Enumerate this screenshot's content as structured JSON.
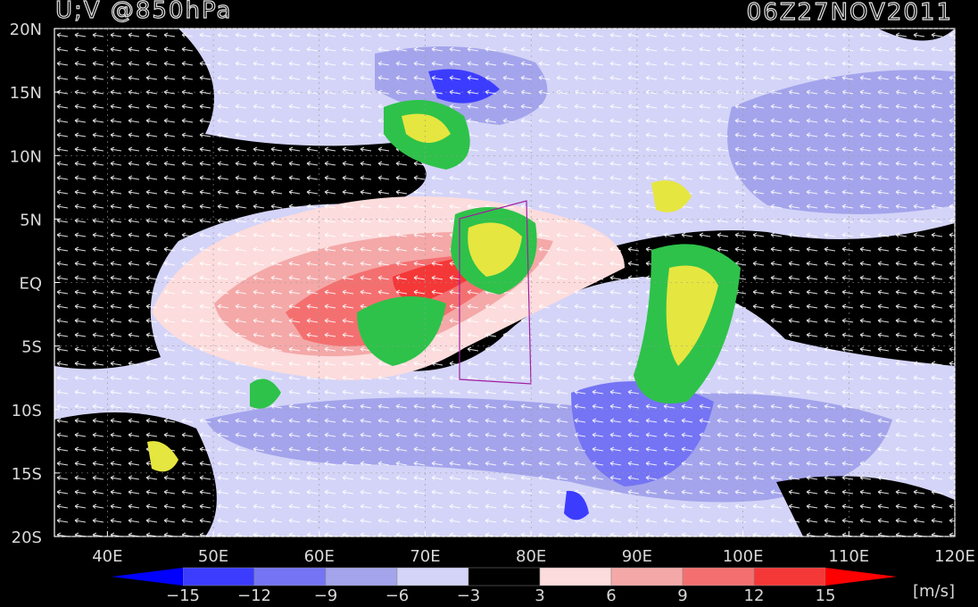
{
  "title": "U;V @850hPa",
  "time": "06Z27NOV2011",
  "map": {
    "xlim": [
      35,
      120
    ],
    "ylim": [
      -20,
      20
    ],
    "lon_ticks": [
      {
        "value": 40,
        "label": "40E"
      },
      {
        "value": 50,
        "label": "50E"
      },
      {
        "value": 60,
        "label": "60E"
      },
      {
        "value": 70,
        "label": "70E"
      },
      {
        "value": 80,
        "label": "80E"
      },
      {
        "value": 90,
        "label": "90E"
      },
      {
        "value": 100,
        "label": "100E"
      },
      {
        "value": 110,
        "label": "110E"
      },
      {
        "value": 120,
        "label": "120E"
      }
    ],
    "lat_ticks": [
      {
        "value": 20,
        "label": "20N"
      },
      {
        "value": 15,
        "label": "15N"
      },
      {
        "value": 10,
        "label": "10N"
      },
      {
        "value": 5,
        "label": "5N"
      },
      {
        "value": 0,
        "label": "EQ"
      },
      {
        "value": -5,
        "label": "5S"
      },
      {
        "value": -10,
        "label": "10S"
      },
      {
        "value": -15,
        "label": "15S"
      },
      {
        "value": -20,
        "label": "20S"
      }
    ]
  },
  "colorbar": {
    "levels": [
      -15,
      -12,
      -9,
      -6,
      -3,
      3,
      6,
      9,
      12,
      15
    ],
    "colors": [
      "#0000ff",
      "#3c3cff",
      "#7474f4",
      "#a4a4ec",
      "#d4d4f8",
      "#000000",
      "#fcdcdc",
      "#f4a8a8",
      "#f47070",
      "#f43838",
      "#ff0000"
    ],
    "unit": "[m/s]"
  }
}
